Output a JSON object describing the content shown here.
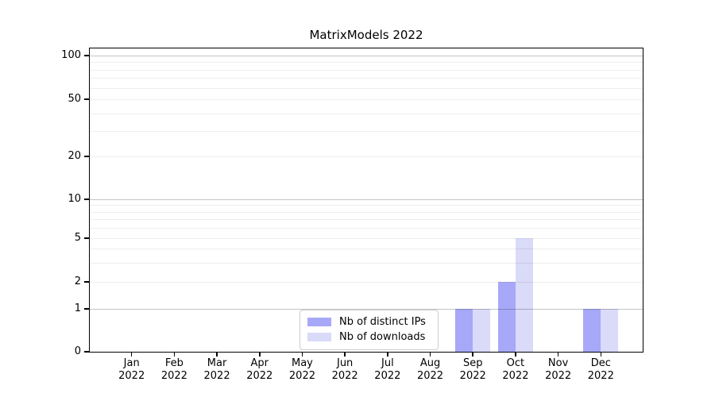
{
  "title": "MatrixModels 2022",
  "chart_data": {
    "type": "bar",
    "title": "MatrixModels 2022",
    "categories": [
      "Jan 2022",
      "Feb 2022",
      "Mar 2022",
      "Apr 2022",
      "May 2022",
      "Jun 2022",
      "Jul 2022",
      "Aug 2022",
      "Sep 2022",
      "Oct 2022",
      "Nov 2022",
      "Dec 2022"
    ],
    "series": [
      {
        "name": "Nb of distinct IPs",
        "color": "#a8a8f8",
        "values": [
          0,
          0,
          0,
          0,
          0,
          0,
          0,
          0,
          1,
          2,
          0,
          1
        ]
      },
      {
        "name": "Nb of downloads",
        "color": "#dadaf9",
        "values": [
          0,
          0,
          0,
          0,
          0,
          0,
          0,
          0,
          1,
          5,
          0,
          1
        ]
      }
    ],
    "xlabel": "",
    "ylabel": "",
    "y_axis": {
      "scale": "symlog",
      "range": [
        0,
        100
      ],
      "tick_values": [
        0,
        1,
        2,
        5,
        10,
        20,
        50,
        100
      ],
      "tick_labels": [
        "0",
        "1",
        "2",
        "5",
        "10",
        "20",
        "50",
        "100"
      ],
      "major_gridlines": [
        1,
        10,
        100
      ],
      "minor_gridlines": [
        2,
        3,
        4,
        5,
        6,
        7,
        8,
        9,
        20,
        30,
        40,
        50,
        60,
        70,
        80,
        90
      ]
    },
    "grid": "horizontal, drawn above bars",
    "legend": {
      "position": "lower center of plot",
      "entries": [
        "Nb of distinct IPs",
        "Nb of downloads"
      ]
    }
  },
  "colors": {
    "background": "#ffffff",
    "bar_distinct_ips": "#a8a8f8",
    "bar_downloads": "#dadaf9",
    "major_grid": "rgba(0,0,0,0.23)",
    "minor_grid": "rgba(0,0,0,0.065)",
    "spine": "#000000",
    "legend_border": "#cccccc",
    "legend_background": "#ffffff",
    "text": "#000000"
  }
}
